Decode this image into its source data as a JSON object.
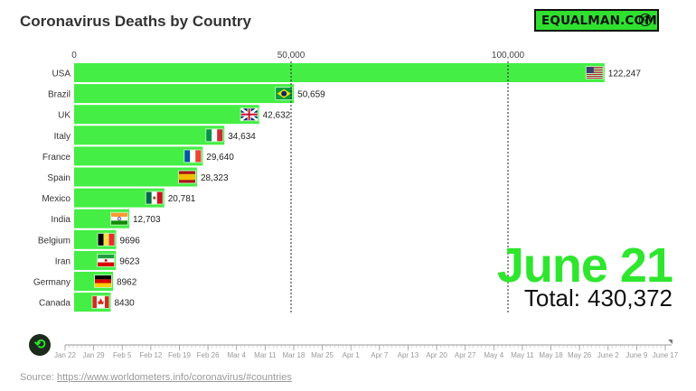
{
  "title": "Coronavirus Deaths by Country",
  "brand": {
    "label": "EQUALMAN.COM",
    "icon": "location-pin-icon"
  },
  "date_label": "June 21",
  "total": {
    "label": "Total:",
    "value": "430,372"
  },
  "source": {
    "label": "Source:",
    "url_text": "https://www.worldometers.info/coronavirus/#countries"
  },
  "colors": {
    "bar": "#44ee44",
    "accent": "#2ee62e"
  },
  "play_icon": "replay-icon",
  "timeline": {
    "ticks": [
      "Jan 22",
      "Jan 29",
      "Feb 5",
      "Feb 12",
      "Feb 19",
      "Feb 26",
      "Mar 4",
      "Mar 11",
      "Mar 18",
      "Mar 25",
      "Apr 1",
      "Apr 7",
      "Apr 13",
      "Apr 20",
      "Apr 27",
      "May 4",
      "May 11",
      "May 18",
      "May 26",
      "June 2",
      "June 9",
      "June 17"
    ],
    "current": "June 21"
  },
  "chart_data": {
    "type": "bar",
    "orientation": "horizontal",
    "title": "Coronavirus Deaths by Country",
    "xlim": [
      0,
      130000
    ],
    "xticks": [
      0,
      50000,
      100000
    ],
    "xtick_labels": [
      "0",
      "50,000",
      "100,000"
    ],
    "categories": [
      "USA",
      "Brazil",
      "UK",
      "Italy",
      "France",
      "Spain",
      "Mexico",
      "India",
      "Belgium",
      "Iran",
      "Germany",
      "Canada"
    ],
    "values": [
      122247,
      50659,
      42632,
      34634,
      29640,
      28323,
      20781,
      12703,
      9696,
      9623,
      8962,
      8430
    ],
    "value_labels": [
      "122,247",
      "50,659",
      "42,632",
      "34,634",
      "29,640",
      "28,323",
      "20,781",
      "12,703",
      "9696",
      "9623",
      "8962",
      "8430"
    ],
    "flags": [
      "us-flag-icon",
      "brazil-flag-icon",
      "uk-flag-icon",
      "italy-flag-icon",
      "france-flag-icon",
      "spain-flag-icon",
      "mexico-flag-icon",
      "india-flag-icon",
      "belgium-flag-icon",
      "iran-flag-icon",
      "germany-flag-icon",
      "canada-flag-icon"
    ]
  }
}
